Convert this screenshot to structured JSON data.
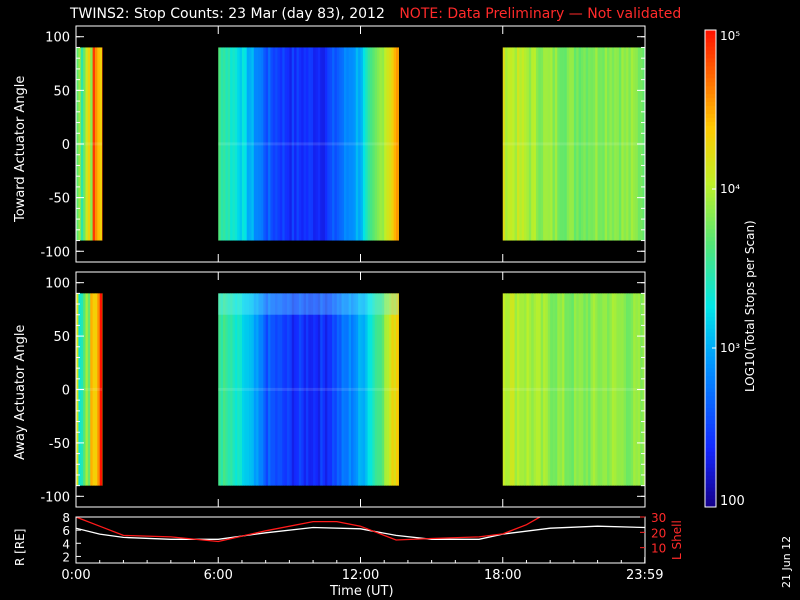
{
  "header": {
    "title": "TWINS2: Stop Counts: 23 Mar (day  83), 2012",
    "note": "NOTE: Data Preliminary — Not validated"
  },
  "footer": {
    "date_stamp": "21 Jun 12"
  },
  "colorbar": {
    "label": "LOG10(Total Stops per Scan)",
    "ticks": [
      "100",
      "10³",
      "10⁴",
      "10⁵"
    ],
    "range": [
      100,
      100000
    ]
  },
  "chart_data": [
    {
      "type": "heatmap",
      "ylabel": "Toward Actuator Angle",
      "ylim": [
        -110,
        110
      ],
      "yticks": [
        "100",
        "50",
        "0",
        "-50",
        "-100"
      ],
      "data_y_range": [
        -90,
        90
      ],
      "coverage_hours": [
        [
          0.0,
          1.1
        ],
        [
          6.0,
          13.6
        ],
        [
          18.0,
          24.0
        ]
      ],
      "intensity_profile": {
        "hours": [
          0.0,
          0.5,
          1.0,
          6.0,
          7.0,
          8.0,
          9.0,
          10.5,
          12.0,
          13.0,
          13.5,
          18.0,
          19.5,
          21.0,
          22.5,
          24.0
        ],
        "log10_counts": [
          3.7,
          4.3,
          4.6,
          3.6,
          3.2,
          2.6,
          2.4,
          2.4,
          3.1,
          4.1,
          4.5,
          4.1,
          3.9,
          3.8,
          3.9,
          3.8
        ]
      }
    },
    {
      "type": "heatmap",
      "ylabel": "Away Actuator Angle",
      "ylim": [
        -110,
        110
      ],
      "yticks": [
        "100",
        "50",
        "0",
        "-50",
        "-100"
      ],
      "data_y_range": [
        -90,
        90
      ],
      "coverage_hours": [
        [
          0.0,
          1.1
        ],
        [
          6.0,
          13.6
        ],
        [
          18.0,
          24.0
        ]
      ],
      "intensity_profile": {
        "hours": [
          0.0,
          0.5,
          1.0,
          6.0,
          7.0,
          8.0,
          9.0,
          10.5,
          12.0,
          13.0,
          13.5,
          18.0,
          19.5,
          21.0,
          22.5,
          24.0
        ],
        "log10_counts": [
          3.7,
          4.3,
          4.6,
          3.6,
          3.2,
          2.6,
          2.4,
          2.4,
          3.0,
          3.9,
          4.4,
          4.1,
          3.9,
          3.8,
          3.9,
          3.8
        ]
      }
    },
    {
      "type": "line",
      "xlabel": "Time (UT)",
      "xticks": [
        "0:00",
        "6:00",
        "12:00",
        "18:00",
        "23:59"
      ],
      "xlim": [
        0,
        24
      ],
      "ylabel": "R [RE]",
      "ylim": [
        1,
        8
      ],
      "yticks": [
        "2",
        "4",
        "6",
        "8"
      ],
      "ylabel_right": "L Shell",
      "ylim_right": [
        0,
        30
      ],
      "yticks_right": [
        "10",
        "20",
        "30"
      ],
      "series": [
        {
          "name": "R [RE]",
          "color": "#ffffff",
          "x": [
            0,
            1,
            2,
            4,
            6,
            8,
            10,
            12,
            13.5,
            15,
            17,
            18,
            20,
            22,
            23.99
          ],
          "y": [
            6.3,
            5.4,
            4.9,
            4.6,
            4.6,
            5.6,
            6.4,
            6.2,
            5.2,
            4.6,
            4.6,
            5.4,
            6.3,
            6.6,
            6.4
          ]
        },
        {
          "name": "L Shell",
          "color": "#ff1a1a",
          "x": [
            0,
            1,
            2,
            4,
            6,
            8,
            10,
            11,
            12,
            13.5,
            15,
            17,
            18,
            19,
            19.8
          ],
          "y": [
            30,
            24,
            18,
            17,
            14,
            21,
            27,
            27,
            24,
            15,
            16,
            17,
            19,
            25,
            32
          ]
        }
      ]
    }
  ]
}
